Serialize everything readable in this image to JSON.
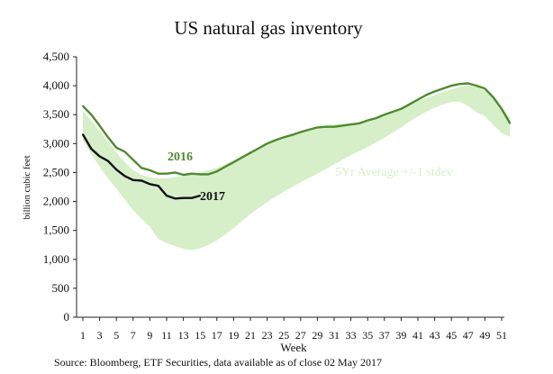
{
  "chart_data": {
    "type": "line",
    "title": "US natural gas inventory",
    "xlabel": "Week",
    "ylabel": "billion cubic feet",
    "source": "Source: Bloomberg, ETF Securities, data available as of close 02 May 2017",
    "x_ticks": [
      "1",
      "3",
      "5",
      "7",
      "9",
      "11",
      "13",
      "15",
      "17",
      "19",
      "21",
      "23",
      "25",
      "27",
      "29",
      "31",
      "33",
      "35",
      "37",
      "39",
      "41",
      "43",
      "45",
      "47",
      "49",
      "51"
    ],
    "y_ticks": [
      "0",
      "500",
      "1,000",
      "1,500",
      "2,000",
      "2,500",
      "3,000",
      "3,500",
      "4,000",
      "4,500"
    ],
    "xlim": [
      1,
      52
    ],
    "ylim": [
      0,
      4500
    ],
    "grid": false,
    "band": {
      "name": "5Yr Average +/-1 stdev",
      "weeks": [
        1,
        2,
        3,
        4,
        5,
        6,
        7,
        8,
        9,
        10,
        11,
        12,
        13,
        14,
        15,
        16,
        17,
        18,
        19,
        20,
        21,
        22,
        23,
        24,
        25,
        26,
        27,
        28,
        29,
        30,
        31,
        32,
        33,
        34,
        35,
        36,
        37,
        38,
        39,
        40,
        41,
        42,
        43,
        44,
        45,
        46,
        47,
        48,
        49,
        50,
        51,
        52
      ],
      "upper": [
        3570,
        3400,
        3220,
        3040,
        2850,
        2680,
        2540,
        2460,
        2420,
        2400,
        2400,
        2420,
        2440,
        2470,
        2500,
        2540,
        2580,
        2640,
        2700,
        2770,
        2850,
        2920,
        2990,
        3050,
        3100,
        3150,
        3200,
        3250,
        3290,
        3320,
        3330,
        3340,
        3350,
        3360,
        3400,
        3450,
        3500,
        3560,
        3620,
        3680,
        3740,
        3790,
        3840,
        3890,
        3940,
        3980,
        4000,
        3980,
        3920,
        3800,
        3620,
        3440
      ],
      "lower": [
        3050,
        2820,
        2600,
        2400,
        2220,
        2030,
        1850,
        1700,
        1560,
        1350,
        1280,
        1230,
        1180,
        1160,
        1190,
        1250,
        1330,
        1430,
        1540,
        1660,
        1780,
        1890,
        1990,
        2080,
        2170,
        2250,
        2330,
        2410,
        2480,
        2560,
        2640,
        2720,
        2800,
        2870,
        2940,
        3020,
        3100,
        3190,
        3280,
        3380,
        3470,
        3550,
        3620,
        3680,
        3720,
        3720,
        3650,
        3540,
        3480,
        3320,
        3180,
        3120
      ]
    },
    "series": [
      {
        "name": "2016",
        "color": "#4e8a2e",
        "x": [
          1,
          2,
          3,
          4,
          5,
          6,
          7,
          8,
          9,
          10,
          11,
          12,
          13,
          14,
          15,
          16,
          17,
          18,
          19,
          20,
          21,
          22,
          23,
          24,
          25,
          26,
          27,
          28,
          29,
          30,
          31,
          32,
          33,
          34,
          35,
          36,
          37,
          38,
          39,
          40,
          41,
          42,
          43,
          44,
          45,
          46,
          47,
          48,
          49,
          50,
          51,
          52
        ],
        "y": [
          3650,
          3500,
          3310,
          3110,
          2930,
          2860,
          2720,
          2580,
          2540,
          2480,
          2480,
          2500,
          2460,
          2480,
          2470,
          2470,
          2520,
          2600,
          2680,
          2760,
          2840,
          2920,
          3000,
          3060,
          3110,
          3150,
          3200,
          3240,
          3280,
          3290,
          3290,
          3310,
          3330,
          3350,
          3400,
          3440,
          3500,
          3550,
          3600,
          3680,
          3760,
          3840,
          3900,
          3950,
          4000,
          4030,
          4040,
          4000,
          3950,
          3800,
          3600,
          3350
        ]
      },
      {
        "name": "2017",
        "color": "#111111",
        "x": [
          1,
          2,
          3,
          4,
          5,
          6,
          7,
          8,
          9,
          10,
          11,
          12,
          13,
          14,
          15
        ],
        "y": [
          3160,
          2910,
          2780,
          2700,
          2550,
          2440,
          2370,
          2360,
          2300,
          2270,
          2100,
          2050,
          2060,
          2060,
          2100
        ]
      }
    ]
  }
}
